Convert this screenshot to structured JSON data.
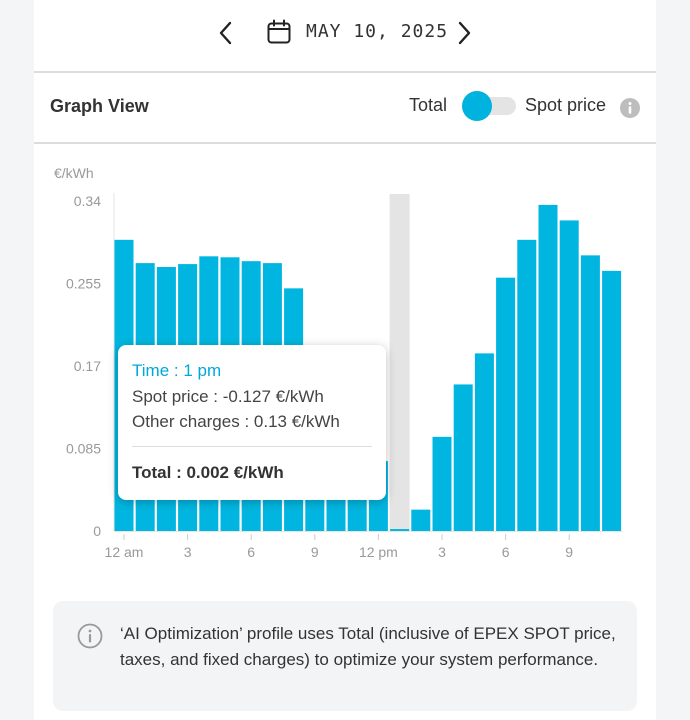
{
  "date_nav": {
    "date": "MAY 10, 2025",
    "prev_icon": "chevron-left-icon",
    "next_icon": "chevron-right-icon",
    "calendar_icon": "calendar-icon"
  },
  "view_bar": {
    "title": "Graph View",
    "toggle_left_label": "Total",
    "toggle_right_label": "Spot price",
    "toggle_state": "left",
    "info_icon": "info-icon",
    "accent_color": "#00b2de"
  },
  "chart_data": {
    "type": "bar",
    "ylabel": "€/kWh",
    "ylim": [
      0,
      0.34
    ],
    "yticks": [
      0,
      0.085,
      0.17,
      0.255,
      0.34
    ],
    "ytick_labels": [
      "0",
      "0.085",
      "0.17",
      "0.255",
      "0.34"
    ],
    "xtick_labels": [
      "12 am",
      "3",
      "6",
      "9",
      "12 pm",
      "3",
      "6",
      "9"
    ],
    "xtick_hours": [
      0,
      3,
      6,
      9,
      12,
      15,
      18,
      21
    ],
    "bar_color": "#00b6e0",
    "highlight_color": "#e4e4e4",
    "highlight_hour": 13,
    "values": [
      0.3,
      0.276,
      0.272,
      0.275,
      0.283,
      0.282,
      0.278,
      0.276,
      0.25,
      0.19,
      0.14,
      0.095,
      0.072,
      0.002,
      0.022,
      0.097,
      0.151,
      0.183,
      0.261,
      0.3,
      0.336,
      0.32,
      0.284,
      0.268
    ]
  },
  "tooltip": {
    "time_label": "Time : 1 pm",
    "spot_label": "Spot price : -0.127 €/kWh",
    "other_label": "Other charges : 0.13 €/kWh",
    "total_label": "Total : 0.002 €/kWh"
  },
  "note": {
    "icon": "info-icon",
    "text": "‘AI Optimization’ profile uses Total (inclusive of EPEX SPOT price, taxes, and fixed charges) to optimize your system performance."
  }
}
